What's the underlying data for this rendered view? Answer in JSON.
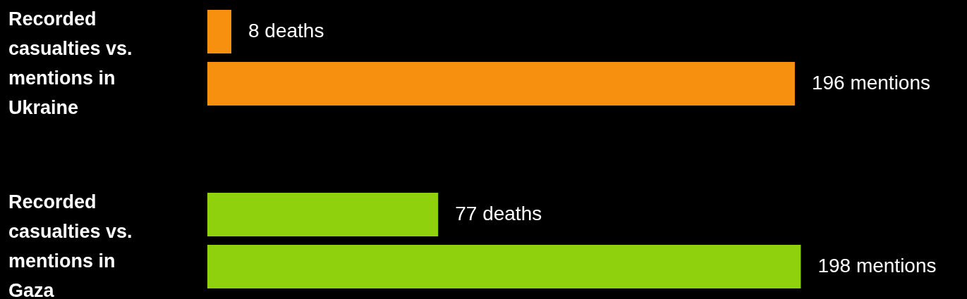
{
  "chart_data": [
    {
      "type": "bar",
      "orientation": "horizontal",
      "title": "Recorded casualties vs. mentions in Ukraine",
      "categories": [
        null,
        null
      ],
      "values": [
        8,
        196
      ],
      "value_labels": [
        "8 deaths",
        "196 mentions"
      ],
      "color": "#f7900f"
    },
    {
      "type": "bar",
      "orientation": "horizontal",
      "title": "Recorded casualties vs. mentions in Gaza",
      "categories": [
        null,
        null
      ],
      "values": [
        77,
        198
      ],
      "value_labels": [
        "77 deaths",
        "198 mentions"
      ],
      "color": "#8fd10d"
    }
  ]
}
